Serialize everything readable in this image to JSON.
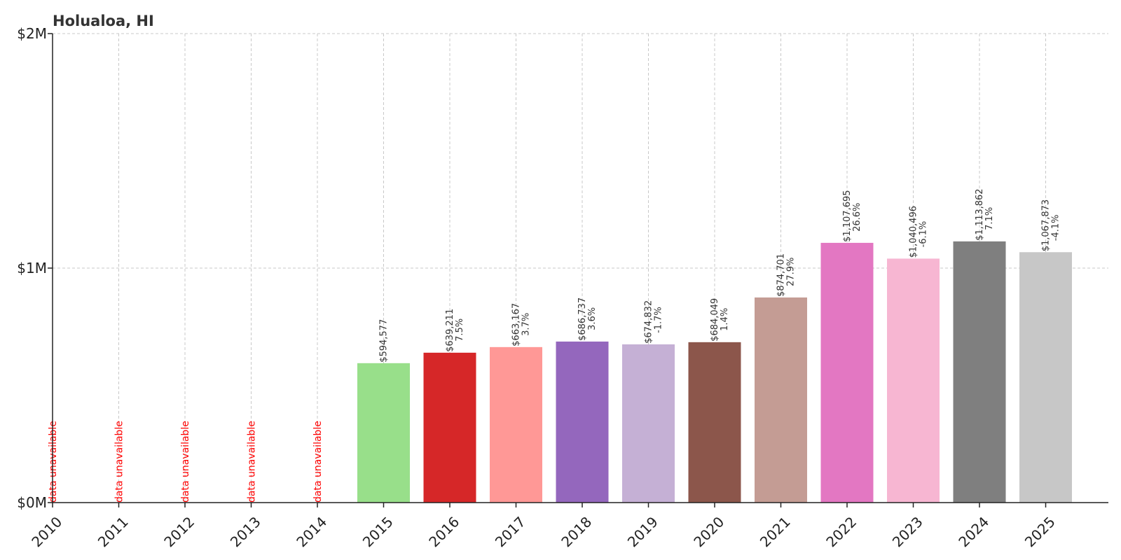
{
  "chart_data": {
    "type": "bar",
    "title": "Holualoa, HI",
    "categories": [
      "2010",
      "2011",
      "2012",
      "2013",
      "2014",
      "2015",
      "2016",
      "2017",
      "2018",
      "2019",
      "2020",
      "2021",
      "2022",
      "2023",
      "2024",
      "2025"
    ],
    "values": [
      null,
      null,
      null,
      null,
      null,
      594577,
      639211,
      663167,
      686737,
      674832,
      684049,
      874701,
      1107695,
      1040496,
      1113862,
      1067873
    ],
    "value_labels": [
      "",
      "",
      "",
      "",
      "",
      "$594,577",
      "$639,211",
      "$663,167",
      "$686,737",
      "$674,832",
      "$684,049",
      "$874,701",
      "$1,107,695",
      "$1,040,496",
      "$1,113,862",
      "$1,067,873"
    ],
    "change_labels": [
      "",
      "",
      "",
      "",
      "",
      "",
      "7.5%",
      "3.7%",
      "3.6%",
      "-1.7%",
      "1.4%",
      "27.9%",
      "26.6%",
      "-6.1%",
      "7.1%",
      "-4.1%"
    ],
    "unavailable_label": "data unavailable",
    "colors": [
      "#1f77b4",
      "#aec7e8",
      "#ff7f0e",
      "#ffbb78",
      "#2ca02c",
      "#98df8a",
      "#d62728",
      "#ff9896",
      "#9467bd",
      "#c5b0d5",
      "#8c564b",
      "#c49c94",
      "#e377c2",
      "#f7b6d2",
      "#7f7f7f",
      "#c7c7c7"
    ],
    "unavailable_color": "#ff0000",
    "ylim": [
      0,
      2000000
    ],
    "yticks": [
      {
        "value": 0,
        "label": "$0M"
      },
      {
        "value": 1000000,
        "label": "$1M"
      },
      {
        "value": 2000000,
        "label": "$2M"
      }
    ],
    "xlabel": "",
    "ylabel": "",
    "grid": true,
    "legend": "none"
  }
}
